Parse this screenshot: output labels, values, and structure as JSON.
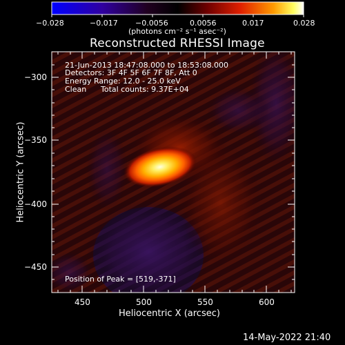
{
  "colorbar": {
    "tick_labels": [
      "−0.028",
      "−0.017",
      "−0.0056",
      "0.0056",
      "0.017",
      "0.028"
    ],
    "units": "(photons cm⁻² s⁻¹ asec⁻²)"
  },
  "plot": {
    "title": "Reconstructed RHESSI Image",
    "xlabel": "Heliocentric X (arcsec)",
    "ylabel": "Heliocentric Y (arcsec)",
    "x_tick_labels": [
      "450",
      "500",
      "550",
      "600"
    ],
    "y_tick_labels": [
      "−300",
      "−350",
      "−400",
      "−450"
    ]
  },
  "info": {
    "time_range": "21-Jun-2013 18:47:08.000 to 18:53:08.000",
    "detectors": "Detectors: 3F 4F 5F 6F 7F 8F, Att 0",
    "energy_range": "Energy Range: 12.0 - 25.0 keV",
    "method": "Clean",
    "total_counts": "Total counts: 9.37E+04",
    "peak_position": "Position of Peak = [519,-371]"
  },
  "footer": {
    "timestamp": "14-May-2022 21:40"
  },
  "colors": {
    "background": "#000000",
    "text": "#ffffff",
    "colormap": [
      "#0000ff",
      "#2a0060",
      "#000000",
      "#6a0000",
      "#ff3000",
      "#ffaa00",
      "#ffff80",
      "#ffffff"
    ]
  }
}
